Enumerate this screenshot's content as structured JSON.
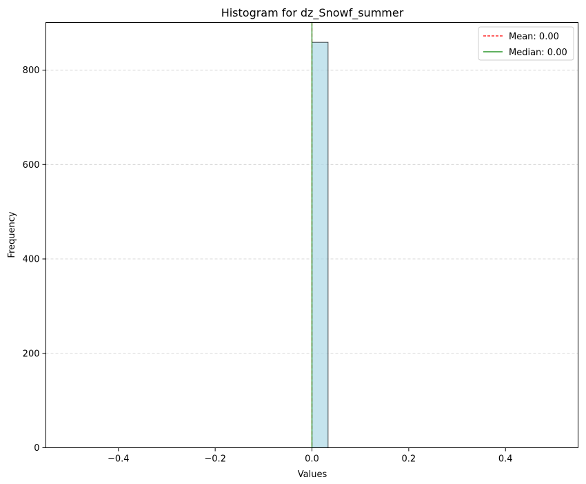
{
  "chart_data": {
    "type": "bar",
    "title": "Histogram for dz_Snowf_summer",
    "xlabel": "Values",
    "ylabel": "Frequency",
    "xlim": [
      -0.55,
      0.55
    ],
    "ylim": [
      0,
      901
    ],
    "xticks": [
      -0.4,
      -0.2,
      0.0,
      0.2,
      0.4
    ],
    "xtick_labels": [
      "−0.4",
      "−0.2",
      "0.0",
      "0.2",
      "0.4"
    ],
    "yticks": [
      0,
      200,
      400,
      600,
      800
    ],
    "ytick_labels": [
      "0",
      "200",
      "400",
      "600",
      "800"
    ],
    "grid": {
      "axis": "y",
      "style": "dashed"
    },
    "bins": [
      {
        "x0": -0.5,
        "x1": -0.4667,
        "count": 0
      },
      {
        "x0": -0.4667,
        "x1": -0.4333,
        "count": 0
      },
      {
        "x0": -0.4333,
        "x1": -0.4,
        "count": 0
      },
      {
        "x0": -0.4,
        "x1": -0.3667,
        "count": 0
      },
      {
        "x0": -0.3667,
        "x1": -0.3333,
        "count": 0
      },
      {
        "x0": -0.3333,
        "x1": -0.3,
        "count": 0
      },
      {
        "x0": -0.3,
        "x1": -0.2667,
        "count": 0
      },
      {
        "x0": -0.2667,
        "x1": -0.2333,
        "count": 0
      },
      {
        "x0": -0.2333,
        "x1": -0.2,
        "count": 0
      },
      {
        "x0": -0.2,
        "x1": -0.1667,
        "count": 0
      },
      {
        "x0": -0.1667,
        "x1": -0.1333,
        "count": 0
      },
      {
        "x0": -0.1333,
        "x1": -0.1,
        "count": 0
      },
      {
        "x0": -0.1,
        "x1": -0.0667,
        "count": 0
      },
      {
        "x0": -0.0667,
        "x1": -0.0333,
        "count": 0
      },
      {
        "x0": -0.0333,
        "x1": 0.0,
        "count": 0
      },
      {
        "x0": 0.0,
        "x1": 0.0333,
        "count": 859
      },
      {
        "x0": 0.0333,
        "x1": 0.0667,
        "count": 0
      },
      {
        "x0": 0.0667,
        "x1": 0.1,
        "count": 0
      },
      {
        "x0": 0.1,
        "x1": 0.1333,
        "count": 0
      },
      {
        "x0": 0.1333,
        "x1": 0.1667,
        "count": 0
      },
      {
        "x0": 0.1667,
        "x1": 0.2,
        "count": 0
      },
      {
        "x0": 0.2,
        "x1": 0.2333,
        "count": 0
      },
      {
        "x0": 0.2333,
        "x1": 0.2667,
        "count": 0
      },
      {
        "x0": 0.2667,
        "x1": 0.3,
        "count": 0
      },
      {
        "x0": 0.3,
        "x1": 0.3333,
        "count": 0
      },
      {
        "x0": 0.3333,
        "x1": 0.3667,
        "count": 0
      },
      {
        "x0": 0.3667,
        "x1": 0.4,
        "count": 0
      },
      {
        "x0": 0.4,
        "x1": 0.4333,
        "count": 0
      },
      {
        "x0": 0.4333,
        "x1": 0.4667,
        "count": 0
      },
      {
        "x0": 0.4667,
        "x1": 0.5,
        "count": 0
      }
    ],
    "mean": {
      "value": 0.0,
      "label": "Mean: 0.00",
      "color": "#ff0000",
      "style": "dashed"
    },
    "median": {
      "value": 0.0,
      "label": "Median: 0.00",
      "color": "#008000",
      "style": "solid"
    },
    "bar_color": "#add8e6",
    "bar_edge_color": "#000000",
    "legend_position": "upper right"
  }
}
